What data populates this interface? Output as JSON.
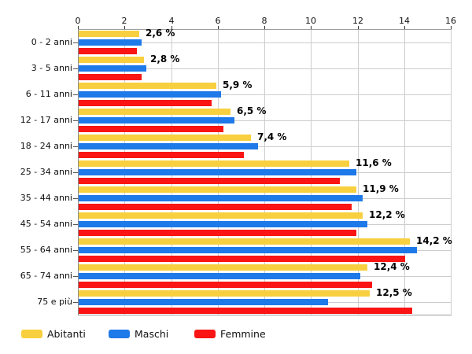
{
  "chart_data": {
    "type": "bar",
    "orientation": "horizontal",
    "title": "",
    "categories": [
      "0 - 2 anni",
      "3 - 5 anni",
      "6 - 11 anni",
      "12 - 17 anni",
      "18 - 24 anni",
      "25 - 34 anni",
      "35 - 44 anni",
      "45 - 54 anni",
      "55 - 64 anni",
      "65 - 74 anni",
      "75 e più"
    ],
    "series": [
      {
        "name": "Abitanti",
        "color": "#F8D03F",
        "values": [
          2.6,
          2.8,
          5.9,
          6.5,
          7.4,
          11.6,
          11.9,
          12.2,
          14.2,
          12.4,
          12.5
        ]
      },
      {
        "name": "Maschi",
        "color": "#1E79E9",
        "values": [
          2.7,
          2.9,
          6.1,
          6.7,
          7.7,
          11.9,
          12.2,
          12.4,
          14.5,
          12.1,
          10.7
        ]
      },
      {
        "name": "Femmine",
        "color": "#FA1414",
        "values": [
          2.5,
          2.7,
          5.7,
          6.2,
          7.1,
          11.2,
          11.7,
          11.9,
          14.0,
          12.6,
          14.3
        ]
      }
    ],
    "value_labels": [
      "2,6 %",
      "2,8 %",
      "5,9 %",
      "6,5 %",
      "7,4 %",
      "11,6 %",
      "11,9 %",
      "12,2 %",
      "14,2 %",
      "12,4 %",
      "12,5 %"
    ],
    "value_label_series": "Abitanti",
    "x_axis": {
      "min": 0,
      "max": 16,
      "tick_step": 2,
      "ticks": [
        0,
        2,
        4,
        6,
        8,
        10,
        12,
        14,
        16
      ]
    },
    "grid": true,
    "legend_position": "bottom-left"
  },
  "colors": {
    "grid": "#CDCDCD",
    "axis": "#9E9E9E",
    "tick": "#333333",
    "text": "#111111",
    "value_label": "#000000",
    "background": "#FFFFFF"
  }
}
